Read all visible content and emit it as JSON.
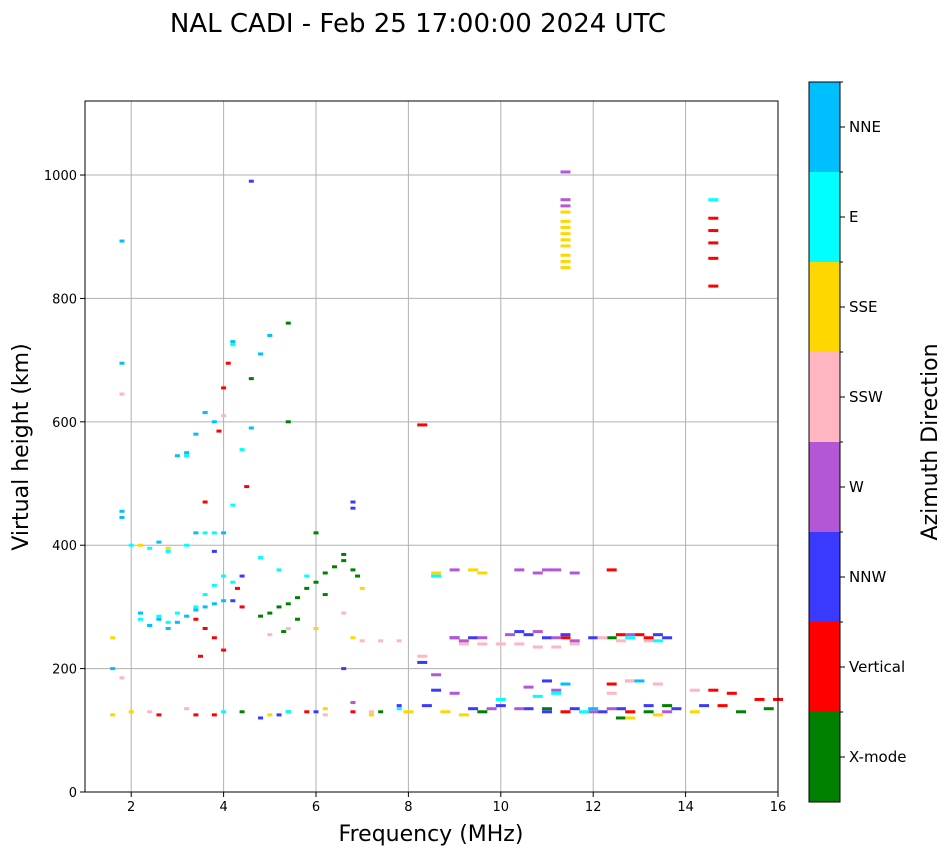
{
  "chart_data": {
    "type": "scatter",
    "title": "NAL CADI - Feb 25 17:00:00 2024 UTC",
    "xlabel": "Frequency (MHz)",
    "ylabel": "Virtual height (km)",
    "xlim": [
      1,
      16
    ],
    "ylim": [
      0,
      1120
    ],
    "xticks": [
      2,
      4,
      6,
      8,
      10,
      12,
      14,
      16
    ],
    "yticks": [
      0,
      200,
      400,
      600,
      800,
      1000
    ],
    "grid": true,
    "colorbar": {
      "label": "Azimuth Direction",
      "categories": [
        {
          "name": "X-mode",
          "color": "#008000"
        },
        {
          "name": "Vertical",
          "color": "#ff0000"
        },
        {
          "name": "NNW",
          "color": "#3a3aff"
        },
        {
          "name": "W",
          "color": "#b457d6"
        },
        {
          "name": "SSW",
          "color": "#ffb6c1"
        },
        {
          "name": "SSE",
          "color": "#ffd700"
        },
        {
          "name": "E",
          "color": "#00ffff"
        },
        {
          "name": "NNE",
          "color": "#00bfff"
        }
      ]
    },
    "series": [
      {
        "name": "X-mode",
        "points": [
          [
            5.0,
            290
          ],
          [
            5.2,
            300
          ],
          [
            5.4,
            305
          ],
          [
            5.6,
            315
          ],
          [
            5.8,
            330
          ],
          [
            6.0,
            340
          ],
          [
            6.2,
            355
          ],
          [
            6.4,
            365
          ],
          [
            6.6,
            375
          ],
          [
            6.6,
            385
          ],
          [
            5.6,
            280
          ],
          [
            5.3,
            260
          ],
          [
            4.6,
            670
          ],
          [
            5.4,
            760
          ],
          [
            5.4,
            600
          ],
          [
            6.0,
            420
          ],
          [
            6.8,
            360
          ],
          [
            6.9,
            350
          ],
          [
            6.2,
            320
          ],
          [
            4.8,
            285
          ],
          [
            12.4,
            250
          ],
          [
            12.6,
            120
          ],
          [
            13.2,
            130
          ],
          [
            13.6,
            140
          ],
          [
            15.2,
            130
          ],
          [
            15.8,
            135
          ],
          [
            4.4,
            130
          ],
          [
            5.4,
            130
          ],
          [
            7.4,
            130
          ],
          [
            11.0,
            135
          ],
          [
            9.6,
            130
          ]
        ]
      },
      {
        "name": "Vertical",
        "points": [
          [
            4.1,
            695
          ],
          [
            4.0,
            655
          ],
          [
            3.9,
            585
          ],
          [
            3.6,
            470
          ],
          [
            4.5,
            495
          ],
          [
            3.4,
            280
          ],
          [
            3.6,
            265
          ],
          [
            3.8,
            250
          ],
          [
            4.0,
            230
          ],
          [
            3.5,
            220
          ],
          [
            4.4,
            300
          ],
          [
            4.3,
            330
          ],
          [
            8.3,
            595
          ],
          [
            14.6,
            930
          ],
          [
            14.6,
            910
          ],
          [
            14.6,
            890
          ],
          [
            14.6,
            865
          ],
          [
            14.6,
            820
          ],
          [
            12.4,
            360
          ],
          [
            11.4,
            250
          ],
          [
            12.6,
            255
          ],
          [
            13.0,
            255
          ],
          [
            13.2,
            250
          ],
          [
            12.4,
            175
          ],
          [
            14.6,
            165
          ],
          [
            15.0,
            160
          ],
          [
            15.6,
            150
          ],
          [
            16.0,
            150
          ],
          [
            14.8,
            140
          ],
          [
            2.6,
            125
          ],
          [
            3.4,
            125
          ],
          [
            3.8,
            125
          ],
          [
            5.8,
            130
          ],
          [
            6.8,
            130
          ],
          [
            11.4,
            130
          ],
          [
            12.8,
            130
          ]
        ]
      },
      {
        "name": "NNW",
        "points": [
          [
            4.6,
            990
          ],
          [
            6.8,
            470
          ],
          [
            6.8,
            460
          ],
          [
            3.8,
            390
          ],
          [
            4.4,
            350
          ],
          [
            4.2,
            310
          ],
          [
            6.6,
            200
          ],
          [
            8.3,
            210
          ],
          [
            8.6,
            165
          ],
          [
            9.0,
            250
          ],
          [
            9.4,
            250
          ],
          [
            10.4,
            260
          ],
          [
            10.6,
            255
          ],
          [
            11.0,
            250
          ],
          [
            11.4,
            255
          ],
          [
            12.0,
            250
          ],
          [
            13.4,
            255
          ],
          [
            13.6,
            250
          ],
          [
            10.0,
            140
          ],
          [
            10.6,
            135
          ],
          [
            11.0,
            130
          ],
          [
            11.6,
            135
          ],
          [
            12.2,
            130
          ],
          [
            12.6,
            135
          ],
          [
            13.2,
            140
          ],
          [
            13.8,
            135
          ],
          [
            14.4,
            140
          ],
          [
            7.8,
            140
          ],
          [
            8.4,
            140
          ],
          [
            9.4,
            135
          ],
          [
            4.8,
            120
          ],
          [
            5.2,
            125
          ],
          [
            6.0,
            130
          ],
          [
            11.0,
            180
          ],
          [
            12.8,
            180
          ]
        ]
      },
      {
        "name": "W",
        "points": [
          [
            11.4,
            1005
          ],
          [
            11.4,
            960
          ],
          [
            11.4,
            950
          ],
          [
            9.0,
            360
          ],
          [
            10.4,
            360
          ],
          [
            10.8,
            355
          ],
          [
            11.0,
            360
          ],
          [
            11.2,
            360
          ],
          [
            11.6,
            355
          ],
          [
            9.0,
            250
          ],
          [
            9.2,
            245
          ],
          [
            9.6,
            250
          ],
          [
            10.2,
            255
          ],
          [
            10.8,
            260
          ],
          [
            11.2,
            250
          ],
          [
            11.6,
            245
          ],
          [
            12.8,
            255
          ],
          [
            8.6,
            190
          ],
          [
            9.0,
            160
          ],
          [
            10.6,
            170
          ],
          [
            11.2,
            165
          ],
          [
            9.8,
            135
          ],
          [
            10.4,
            135
          ],
          [
            12.0,
            130
          ],
          [
            12.4,
            135
          ],
          [
            13.6,
            130
          ],
          [
            6.8,
            145
          ]
        ]
      },
      {
        "name": "SSW",
        "points": [
          [
            1.8,
            645
          ],
          [
            4.0,
            610
          ],
          [
            5.4,
            265
          ],
          [
            5.0,
            255
          ],
          [
            6.6,
            290
          ],
          [
            7.0,
            245
          ],
          [
            7.4,
            245
          ],
          [
            7.8,
            245
          ],
          [
            8.3,
            220
          ],
          [
            9.2,
            240
          ],
          [
            9.6,
            240
          ],
          [
            10.0,
            240
          ],
          [
            10.4,
            240
          ],
          [
            10.8,
            235
          ],
          [
            11.2,
            235
          ],
          [
            11.6,
            240
          ],
          [
            12.2,
            250
          ],
          [
            12.6,
            245
          ],
          [
            13.2,
            245
          ],
          [
            12.4,
            160
          ],
          [
            12.8,
            180
          ],
          [
            13.4,
            175
          ],
          [
            14.2,
            165
          ],
          [
            1.8,
            185
          ],
          [
            6.2,
            125
          ],
          [
            7.2,
            130
          ],
          [
            2.4,
            130
          ],
          [
            3.2,
            135
          ]
        ]
      },
      {
        "name": "SSE",
        "points": [
          [
            11.4,
            940
          ],
          [
            11.4,
            925
          ],
          [
            11.4,
            915
          ],
          [
            11.4,
            905
          ],
          [
            11.4,
            895
          ],
          [
            11.4,
            885
          ],
          [
            11.4,
            870
          ],
          [
            11.4,
            860
          ],
          [
            11.4,
            850
          ],
          [
            9.6,
            355
          ],
          [
            9.4,
            360
          ],
          [
            8.6,
            355
          ],
          [
            3.2,
            545
          ],
          [
            2.8,
            395
          ],
          [
            2.2,
            400
          ],
          [
            6.0,
            265
          ],
          [
            7.0,
            330
          ],
          [
            6.8,
            250
          ],
          [
            12.8,
            120
          ],
          [
            13.4,
            125
          ],
          [
            14.2,
            130
          ],
          [
            8.8,
            130
          ],
          [
            9.2,
            125
          ],
          [
            1.6,
            250
          ],
          [
            1.6,
            125
          ],
          [
            2.0,
            130
          ],
          [
            5.0,
            125
          ],
          [
            6.2,
            135
          ],
          [
            7.2,
            125
          ],
          [
            8.0,
            130
          ]
        ]
      },
      {
        "name": "E",
        "points": [
          [
            14.6,
            960
          ],
          [
            4.2,
            725
          ],
          [
            4.4,
            555
          ],
          [
            3.2,
            545
          ],
          [
            3.6,
            615
          ],
          [
            4.2,
            465
          ],
          [
            3.8,
            420
          ],
          [
            2.2,
            280
          ],
          [
            2.4,
            270
          ],
          [
            2.6,
            285
          ],
          [
            2.8,
            275
          ],
          [
            3.0,
            290
          ],
          [
            3.4,
            300
          ],
          [
            3.6,
            320
          ],
          [
            3.8,
            335
          ],
          [
            4.0,
            350
          ],
          [
            4.2,
            340
          ],
          [
            2.0,
            400
          ],
          [
            2.4,
            395
          ],
          [
            2.8,
            390
          ],
          [
            3.2,
            400
          ],
          [
            3.6,
            420
          ],
          [
            4.8,
            380
          ],
          [
            5.2,
            360
          ],
          [
            5.8,
            350
          ],
          [
            8.6,
            350
          ],
          [
            10.0,
            150
          ],
          [
            10.8,
            155
          ],
          [
            11.2,
            160
          ],
          [
            12.8,
            250
          ],
          [
            13.4,
            245
          ],
          [
            11.8,
            130
          ],
          [
            7.8,
            135
          ],
          [
            5.4,
            130
          ],
          [
            4.0,
            130
          ]
        ]
      },
      {
        "name": "NNE",
        "points": [
          [
            1.8,
            893
          ],
          [
            1.8,
            695
          ],
          [
            1.8,
            455
          ],
          [
            1.8,
            445
          ],
          [
            2.2,
            290
          ],
          [
            2.4,
            270
          ],
          [
            2.6,
            280
          ],
          [
            2.8,
            265
          ],
          [
            3.0,
            275
          ],
          [
            3.2,
            285
          ],
          [
            3.4,
            295
          ],
          [
            3.6,
            300
          ],
          [
            3.8,
            305
          ],
          [
            4.0,
            310
          ],
          [
            3.6,
            615
          ],
          [
            3.8,
            600
          ],
          [
            3.4,
            580
          ],
          [
            3.2,
            550
          ],
          [
            4.2,
            730
          ],
          [
            5.0,
            740
          ],
          [
            4.8,
            710
          ],
          [
            4.6,
            590
          ],
          [
            3.0,
            545
          ],
          [
            4.0,
            420
          ],
          [
            3.4,
            420
          ],
          [
            2.6,
            405
          ],
          [
            1.6,
            200
          ],
          [
            13.0,
            180
          ],
          [
            11.4,
            175
          ],
          [
            12.0,
            135
          ]
        ]
      }
    ]
  }
}
